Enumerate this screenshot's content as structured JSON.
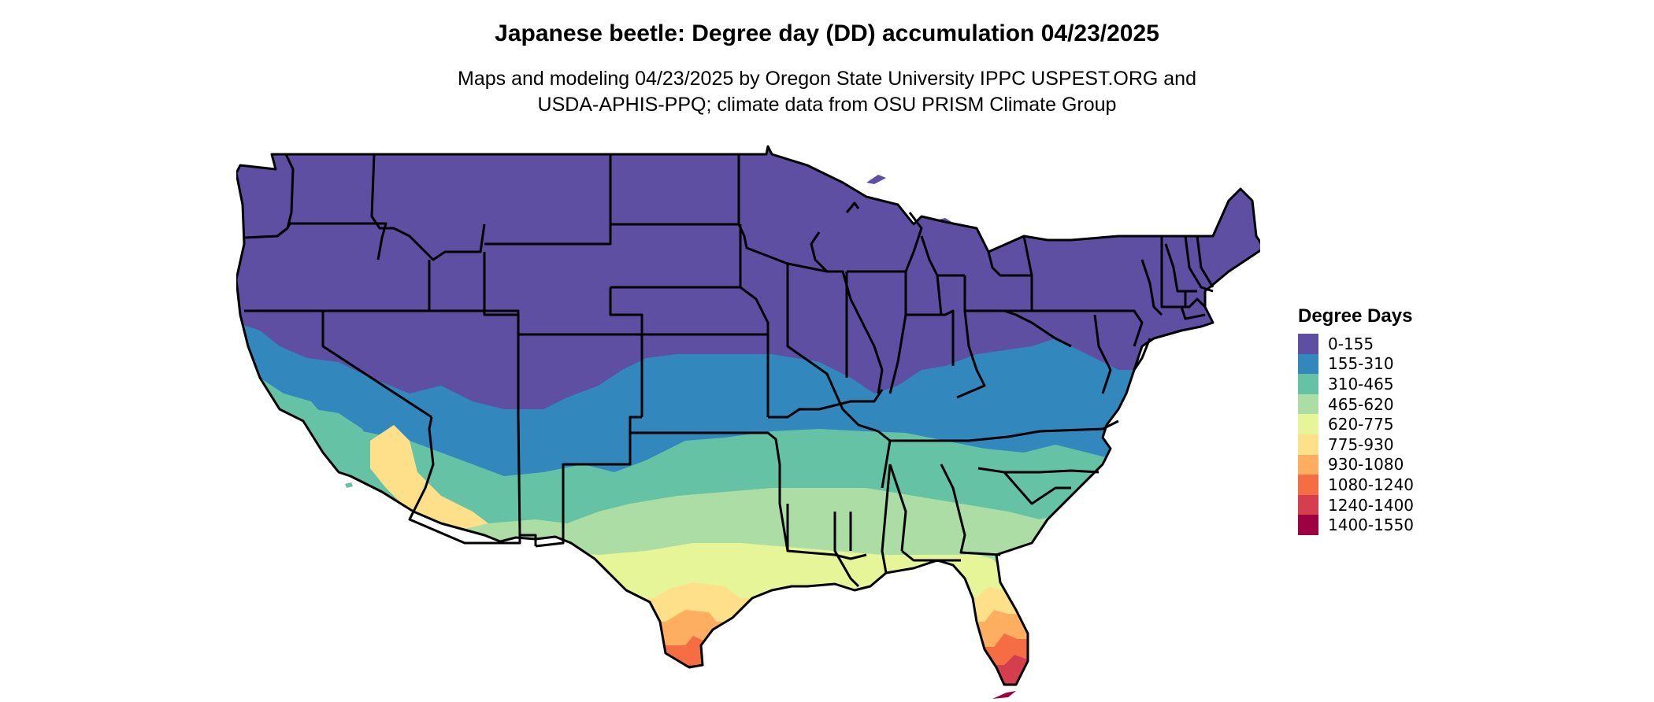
{
  "title": "Japanese beetle: Degree day (DD) accumulation 04/23/2025",
  "subtitle": {
    "line1": "Maps and modeling 04/23/2025 by Oregon State University IPPC USPEST.ORG and",
    "line2": "USDA-APHIS-PPQ; climate data from OSU PRISM Climate Group"
  },
  "legend": {
    "title": "Degree Days",
    "items": [
      {
        "label": "0-155",
        "color": "#5E4FA2"
      },
      {
        "label": "155-310",
        "color": "#3288BD"
      },
      {
        "label": "310-465",
        "color": "#66C2A5"
      },
      {
        "label": "465-620",
        "color": "#ABDDA4"
      },
      {
        "label": "620-775",
        "color": "#E6F598"
      },
      {
        "label": "775-930",
        "color": "#FEE08B"
      },
      {
        "label": "930-1080",
        "color": "#FDAE61"
      },
      {
        "label": "1080-1240",
        "color": "#F46D43"
      },
      {
        "label": "1240-1400",
        "color": "#D53E4F"
      },
      {
        "label": "1400-1550",
        "color": "#9E0142"
      }
    ]
  }
}
